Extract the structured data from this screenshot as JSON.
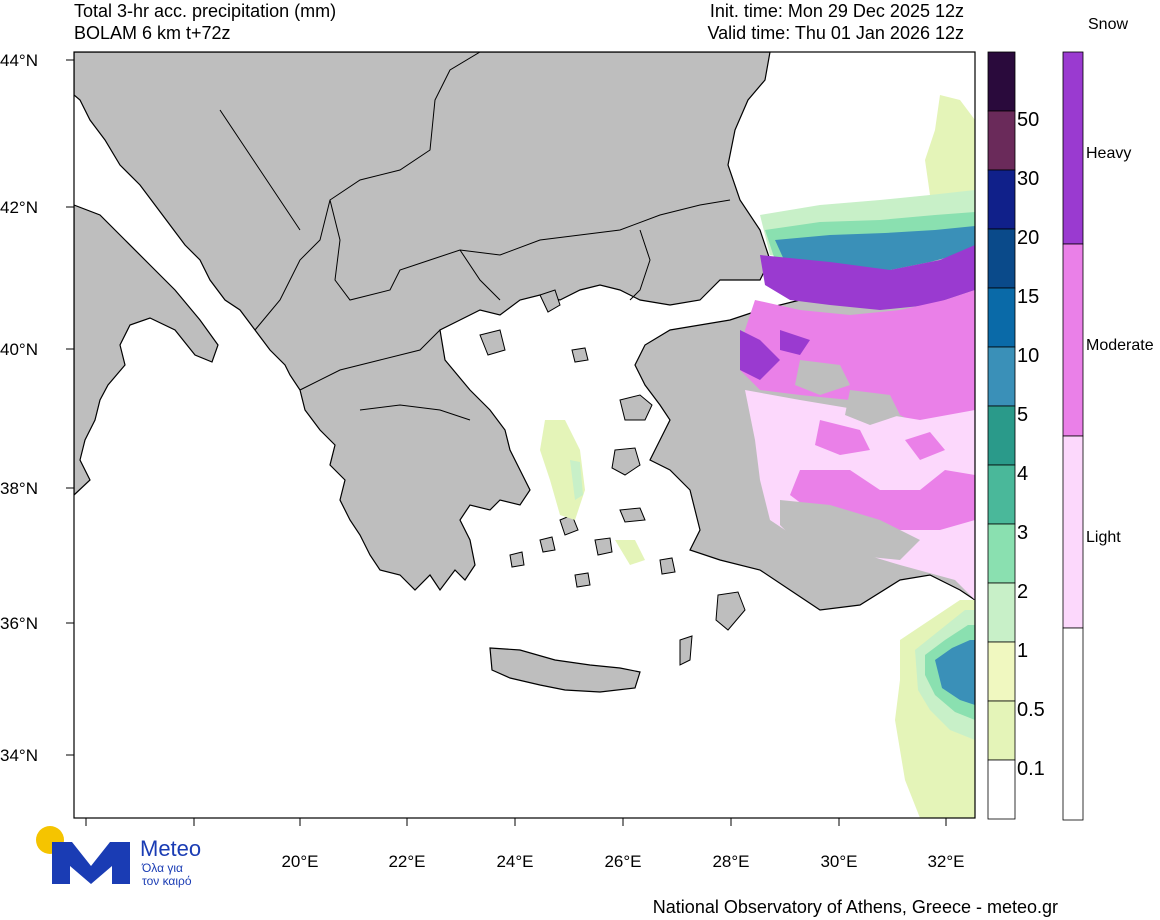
{
  "header": {
    "title": "Total 3-hr acc. precipitation (mm)",
    "model": "BOLAM 6 km t+72z",
    "init_time": "Init. time: Mon 29 Dec 2025 12z",
    "valid_time": "Valid time: Thu 01 Jan 2026 12z"
  },
  "axes": {
    "lat_labels": [
      "44°N",
      "42°N",
      "40°N",
      "38°N",
      "36°N",
      "34°N"
    ],
    "lon_labels": [
      "20°E",
      "22°E",
      "24°E",
      "26°E",
      "28°E",
      "30°E",
      "32°E"
    ]
  },
  "precip_scale": {
    "labels": [
      "50",
      "30",
      "20",
      "15",
      "10",
      "5",
      "4",
      "3",
      "2",
      "1",
      "0.5",
      "0.1"
    ],
    "colors": [
      "#2a0a3c",
      "#6a2a5a",
      "#10208a",
      "#0a4a8a",
      "#0a6aa8",
      "#3a90b8",
      "#2a9a8a",
      "#4ab89a",
      "#8ae0b0",
      "#c8f0c8",
      "#f0f8c0",
      "#e4f4b8",
      "#ffffff"
    ]
  },
  "snow_scale": {
    "title": "Snow",
    "labels": [
      "Heavy",
      "Moderate",
      "Light"
    ],
    "colors": [
      "#9a3ad0",
      "#ea80e8",
      "#fcd8fc",
      "#ffffff"
    ]
  },
  "logo": {
    "name": "Meteo",
    "tagline_1": "Όλα για",
    "tagline_2": "τον καιρό"
  },
  "credit": "National Observatory of Athens, Greece - meteo.gr"
}
